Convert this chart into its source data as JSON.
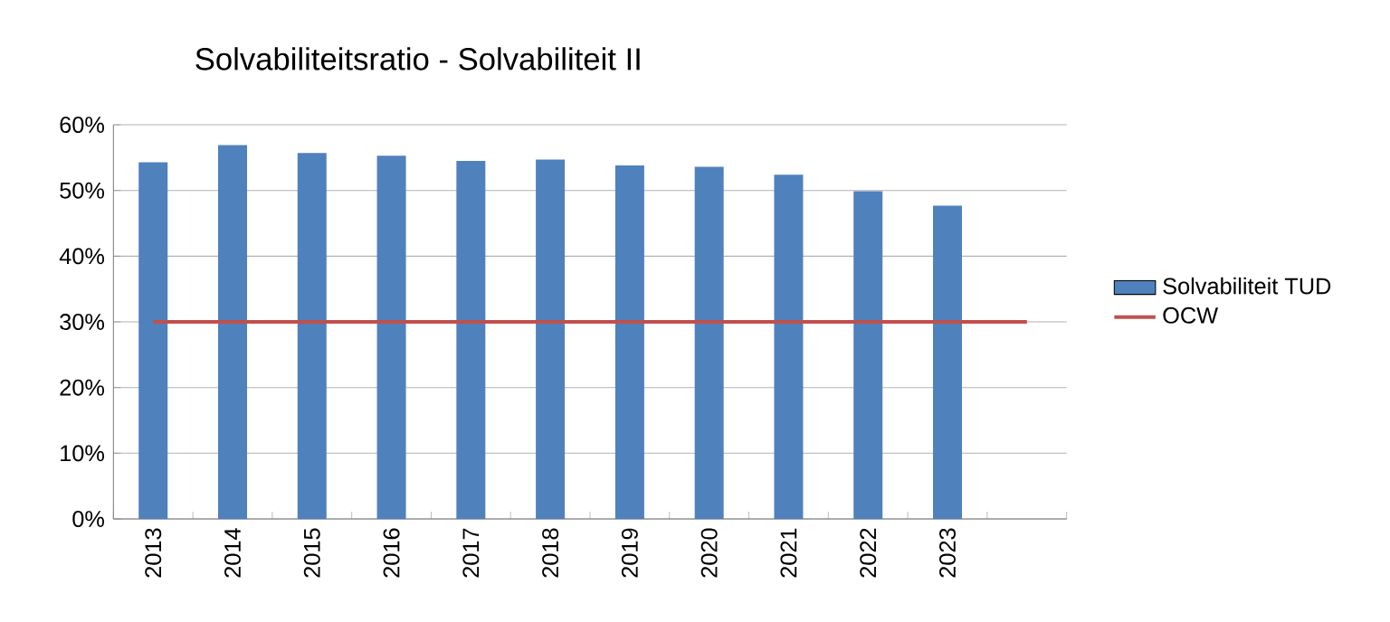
{
  "chart_data": {
    "type": "bar",
    "title": "Solvabiliteitsratio - Solvabiliteit II",
    "categories": [
      "2013",
      "2014",
      "2015",
      "2016",
      "2017",
      "2018",
      "2019",
      "2020",
      "2021",
      "2022",
      "2023",
      null
    ],
    "series": [
      {
        "name": "Solvabiliteit TUD",
        "color": "#4f81bd",
        "values": [
          54.3,
          56.9,
          55.7,
          55.3,
          54.5,
          54.7,
          53.8,
          53.6,
          52.4,
          49.9,
          47.7,
          null
        ]
      },
      {
        "name": "OCW",
        "type": "line",
        "color": "#c0504d",
        "values": [
          30,
          30,
          30,
          30,
          30,
          30,
          30,
          30,
          30,
          30,
          30,
          30
        ]
      }
    ],
    "ylim": [
      0,
      60
    ],
    "yticks": [
      {
        "value": 0,
        "label": "0%"
      },
      {
        "value": 10,
        "label": "10%"
      },
      {
        "value": 20,
        "label": "20%"
      },
      {
        "value": 30,
        "label": "30%"
      },
      {
        "value": 40,
        "label": "40%"
      },
      {
        "value": 50,
        "label": "50%"
      },
      {
        "value": 60,
        "label": "60%"
      }
    ],
    "grid": "y",
    "legend": "right",
    "marker": "none"
  }
}
